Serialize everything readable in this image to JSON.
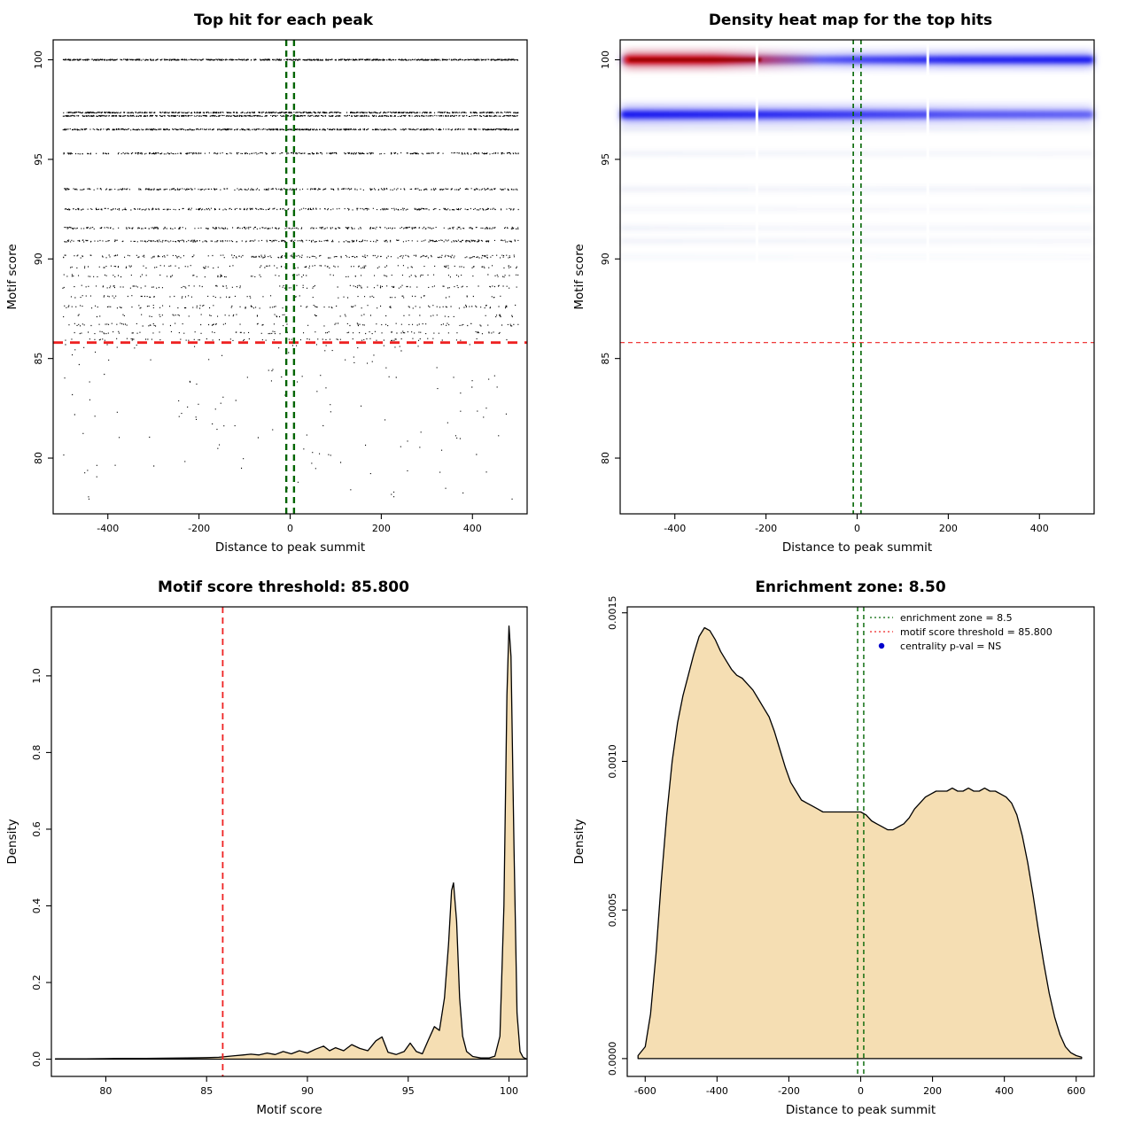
{
  "chart_data": [
    {
      "type": "scatter",
      "title": "Top hit for each peak",
      "xlabel": "Distance to peak summit",
      "ylabel": "Motif score",
      "xlim": [
        -520,
        520
      ],
      "ylim": [
        77.2,
        101
      ],
      "xticks": [
        -400,
        -200,
        0,
        200,
        400
      ],
      "xtick_labels": [
        "-400",
        "-200",
        "0",
        "200",
        "400"
      ],
      "yticks": [
        80,
        85,
        90,
        95,
        100
      ],
      "ytick_labels": [
        "80",
        "85",
        "90",
        "95",
        "100"
      ],
      "margins": {
        "l": 60,
        "t": 45,
        "r": 45,
        "b": 60
      },
      "point_x_range": [
        -500,
        500
      ],
      "bands": [
        {
          "score": 100,
          "n": 850,
          "jitter": 0.05
        },
        {
          "score": 97.35,
          "n": 650,
          "jitter": 0.05
        },
        {
          "score": 97.18,
          "n": 600,
          "jitter": 0.05
        },
        {
          "score": 96.5,
          "n": 620,
          "jitter": 0.06
        },
        {
          "score": 95.3,
          "n": 360,
          "jitter": 0.07
        },
        {
          "score": 93.5,
          "n": 330,
          "jitter": 0.08
        },
        {
          "score": 92.5,
          "n": 300,
          "jitter": 0.08
        },
        {
          "score": 91.55,
          "n": 280,
          "jitter": 0.09
        },
        {
          "score": 90.9,
          "n": 300,
          "jitter": 0.09
        },
        {
          "score": 90.12,
          "n": 210,
          "jitter": 0.14
        },
        {
          "score": 89.6,
          "n": 120,
          "jitter": 0.14
        },
        {
          "score": 89.15,
          "n": 90,
          "jitter": 0.12
        },
        {
          "score": 88.6,
          "n": 115,
          "jitter": 0.14
        },
        {
          "score": 88.1,
          "n": 75,
          "jitter": 0.12
        },
        {
          "score": 87.6,
          "n": 120,
          "jitter": 0.16
        },
        {
          "score": 87.15,
          "n": 65,
          "jitter": 0.12
        },
        {
          "score": 86.7,
          "n": 95,
          "jitter": 0.14
        },
        {
          "score": 86.3,
          "n": 85,
          "jitter": 0.12
        },
        {
          "score": 85.95,
          "n": 70,
          "jitter": 0.1
        }
      ],
      "sparse": {
        "n": 150,
        "y_top": 85.7,
        "y_spread": 7.8,
        "power": 1.7
      },
      "threshold": {
        "y": 85.8,
        "color": "#ee2222",
        "width": 2.8,
        "dash": "11 8"
      },
      "zone": {
        "x": 8.5,
        "color": "#006400",
        "width": 2.4,
        "dash": "7 5"
      }
    },
    {
      "type": "heatmap",
      "title": "Density heat map for the top hits",
      "xlabel": "Distance to peak summit",
      "ylabel": "Motif score",
      "xlim": [
        -520,
        520
      ],
      "ylim": [
        77.2,
        101
      ],
      "xticks": [
        -400,
        -200,
        0,
        200,
        400
      ],
      "xtick_labels": [
        "-400",
        "-200",
        "0",
        "200",
        "400"
      ],
      "yticks": [
        80,
        85,
        90,
        95,
        100
      ],
      "ytick_labels": [
        "80",
        "85",
        "90",
        "95",
        "100"
      ],
      "margins": {
        "l": 60,
        "t": 45,
        "r": 45,
        "b": 60
      },
      "bands": [
        {
          "y": 100,
          "h": 7,
          "color": "#0000ee",
          "halo": true,
          "stops": [
            [
              0,
              0.3
            ],
            [
              0.28,
              0.42
            ],
            [
              0.5,
              0.72
            ],
            [
              0.72,
              0.9
            ],
            [
              1,
              0.95
            ]
          ]
        },
        {
          "y": 97.25,
          "h": 8,
          "color": "#0000ee",
          "halo": true,
          "stops": [
            [
              0,
              0.93
            ],
            [
              0.4,
              0.78
            ],
            [
              0.75,
              0.6
            ],
            [
              1,
              0.55
            ]
          ]
        },
        {
          "y": 96.5,
          "h": 5,
          "color": "#5566bb",
          "stops": [
            [
              0,
              0.13
            ],
            [
              1,
              0.08
            ]
          ]
        },
        {
          "y": 95.3,
          "h": 5,
          "color": "#5566bb",
          "stops": [
            [
              0,
              0.1
            ],
            [
              1,
              0.07
            ]
          ]
        },
        {
          "y": 93.5,
          "h": 5,
          "color": "#5566bb",
          "stops": [
            [
              0,
              0.12
            ],
            [
              0.5,
              0.09
            ],
            [
              1,
              0.11
            ]
          ]
        },
        {
          "y": 92.5,
          "h": 4,
          "color": "#5566bb",
          "stops": [
            [
              0,
              0.08
            ],
            [
              1,
              0.06
            ]
          ]
        },
        {
          "y": 91.55,
          "h": 5,
          "color": "#5566bb",
          "stops": [
            [
              0,
              0.11
            ],
            [
              0.4,
              0.07
            ],
            [
              1,
              0.08
            ]
          ]
        },
        {
          "y": 90.9,
          "h": 5,
          "color": "#5566bb",
          "stops": [
            [
              0,
              0.1
            ],
            [
              1,
              0.07
            ]
          ]
        },
        {
          "y": 90.1,
          "h": 4,
          "color": "#5566bb",
          "stops": [
            [
              0,
              0.06
            ],
            [
              1,
              0.04
            ]
          ]
        }
      ],
      "red_overlay": {
        "y": 100,
        "x0": -510,
        "x1": -80,
        "h": 8,
        "color": "#dd0000",
        "stops": [
          [
            0,
            0.95
          ],
          [
            0.45,
            0.9
          ],
          [
            0.8,
            0.3
          ],
          [
            1,
            0
          ]
        ]
      },
      "red_core": {
        "y": 100,
        "x0": -500,
        "x1": -210,
        "h": 4,
        "color": "#8b0000",
        "opacity": 0.8
      },
      "gaps": [
        -220,
        155
      ],
      "gap_bottom": 89.6,
      "threshold": {
        "y": 85.8,
        "color": "#ee2222",
        "width": 1.2,
        "dash": "5 4"
      },
      "zone": {
        "x": 8.5,
        "color": "#006400",
        "width": 1.6,
        "dash": "5 4"
      }
    },
    {
      "type": "area",
      "title": "Motif score threshold: 85.800",
      "xlabel": "Motif score",
      "ylabel": "Density",
      "xlim": [
        77.3,
        100.9
      ],
      "ylim": [
        -0.045,
        1.18
      ],
      "xticks": [
        80,
        85,
        90,
        95,
        100
      ],
      "xtick_labels": [
        "80",
        "85",
        "90",
        "95",
        "100"
      ],
      "yticks": [
        0,
        0.2,
        0.4,
        0.6,
        0.8,
        1.0
      ],
      "ytick_labels": [
        "0.0",
        "0.2",
        "0.4",
        "0.6",
        "0.8",
        "1.0"
      ],
      "margins": {
        "l": 58,
        "t": 45,
        "r": 45,
        "b": 65
      },
      "fill": "#f5deb3",
      "points": [
        [
          77.5,
          0.001
        ],
        [
          79,
          0.001
        ],
        [
          80,
          0.0015
        ],
        [
          81,
          0.002
        ],
        [
          82,
          0.002
        ],
        [
          83,
          0.0025
        ],
        [
          84,
          0.003
        ],
        [
          85,
          0.004
        ],
        [
          85.6,
          0.005
        ],
        [
          86,
          0.007
        ],
        [
          86.4,
          0.009
        ],
        [
          86.8,
          0.011
        ],
        [
          87.2,
          0.013
        ],
        [
          87.6,
          0.011
        ],
        [
          88,
          0.016
        ],
        [
          88.4,
          0.012
        ],
        [
          88.8,
          0.02
        ],
        [
          89.2,
          0.014
        ],
        [
          89.6,
          0.022
        ],
        [
          90,
          0.016
        ],
        [
          90.4,
          0.026
        ],
        [
          90.8,
          0.034
        ],
        [
          91.1,
          0.022
        ],
        [
          91.4,
          0.03
        ],
        [
          91.8,
          0.022
        ],
        [
          92.2,
          0.038
        ],
        [
          92.6,
          0.028
        ],
        [
          93,
          0.022
        ],
        [
          93.4,
          0.048
        ],
        [
          93.7,
          0.058
        ],
        [
          94,
          0.018
        ],
        [
          94.4,
          0.012
        ],
        [
          94.8,
          0.02
        ],
        [
          95.1,
          0.042
        ],
        [
          95.4,
          0.02
        ],
        [
          95.7,
          0.014
        ],
        [
          96,
          0.05
        ],
        [
          96.3,
          0.085
        ],
        [
          96.55,
          0.075
        ],
        [
          96.8,
          0.16
        ],
        [
          97,
          0.3
        ],
        [
          97.15,
          0.44
        ],
        [
          97.25,
          0.46
        ],
        [
          97.4,
          0.36
        ],
        [
          97.55,
          0.16
        ],
        [
          97.7,
          0.06
        ],
        [
          97.9,
          0.02
        ],
        [
          98.2,
          0.007
        ],
        [
          98.6,
          0.003
        ],
        [
          99,
          0.003
        ],
        [
          99.3,
          0.008
        ],
        [
          99.55,
          0.06
        ],
        [
          99.75,
          0.4
        ],
        [
          99.9,
          0.95
        ],
        [
          100,
          1.13
        ],
        [
          100.1,
          1.05
        ],
        [
          100.25,
          0.55
        ],
        [
          100.4,
          0.12
        ],
        [
          100.55,
          0.02
        ],
        [
          100.7,
          0.005
        ],
        [
          100.85,
          0.001
        ]
      ],
      "vlines": [
        {
          "x": 85.8,
          "color": "#ee2222",
          "width": 1.8,
          "dash": "7 5"
        }
      ]
    },
    {
      "type": "area",
      "title": "Enrichment zone: 8.50",
      "xlabel": "Distance to peak summit",
      "ylabel": "Density",
      "xlim": [
        -650,
        650
      ],
      "ylim": [
        -6e-05,
        0.00152
      ],
      "xticks": [
        -600,
        -400,
        -200,
        0,
        200,
        400,
        600
      ],
      "xtick_labels": [
        "-600",
        "-400",
        "-200",
        "0",
        "200",
        "400",
        "600"
      ],
      "yticks": [
        0,
        0.0005,
        0.001,
        0.0015
      ],
      "ytick_labels": [
        "0.0000",
        "0.0005",
        "0.0010",
        "0.0015"
      ],
      "margins": {
        "l": 68,
        "t": 45,
        "r": 45,
        "b": 65
      },
      "fill": "#f5deb3",
      "points": [
        [
          -620,
          1e-05
        ],
        [
          -600,
          4e-05
        ],
        [
          -585,
          0.00015
        ],
        [
          -570,
          0.00035
        ],
        [
          -555,
          0.0006
        ],
        [
          -540,
          0.00082
        ],
        [
          -525,
          0.001
        ],
        [
          -510,
          0.00113
        ],
        [
          -495,
          0.00122
        ],
        [
          -480,
          0.00129
        ],
        [
          -465,
          0.00136
        ],
        [
          -450,
          0.00142
        ],
        [
          -435,
          0.00145
        ],
        [
          -420,
          0.00144
        ],
        [
          -405,
          0.00141
        ],
        [
          -390,
          0.00137
        ],
        [
          -375,
          0.00134
        ],
        [
          -360,
          0.00131
        ],
        [
          -345,
          0.00129
        ],
        [
          -330,
          0.00128
        ],
        [
          -315,
          0.00126
        ],
        [
          -300,
          0.00124
        ],
        [
          -285,
          0.00121
        ],
        [
          -270,
          0.00118
        ],
        [
          -255,
          0.00115
        ],
        [
          -240,
          0.0011
        ],
        [
          -225,
          0.00104
        ],
        [
          -210,
          0.00098
        ],
        [
          -195,
          0.00093
        ],
        [
          -180,
          0.0009
        ],
        [
          -165,
          0.00087
        ],
        [
          -150,
          0.00086
        ],
        [
          -135,
          0.00085
        ],
        [
          -120,
          0.00084
        ],
        [
          -105,
          0.00083
        ],
        [
          -90,
          0.00083
        ],
        [
          -75,
          0.00083
        ],
        [
          -60,
          0.00083
        ],
        [
          -45,
          0.00083
        ],
        [
          -30,
          0.00083
        ],
        [
          -15,
          0.00083
        ],
        [
          0,
          0.00083
        ],
        [
          15,
          0.00082
        ],
        [
          30,
          0.0008
        ],
        [
          45,
          0.00079
        ],
        [
          60,
          0.00078
        ],
        [
          75,
          0.00077
        ],
        [
          90,
          0.00077
        ],
        [
          105,
          0.00078
        ],
        [
          120,
          0.00079
        ],
        [
          135,
          0.00081
        ],
        [
          150,
          0.00084
        ],
        [
          165,
          0.00086
        ],
        [
          180,
          0.00088
        ],
        [
          195,
          0.00089
        ],
        [
          210,
          0.0009
        ],
        [
          225,
          0.0009
        ],
        [
          240,
          0.0009
        ],
        [
          255,
          0.00091
        ],
        [
          270,
          0.0009
        ],
        [
          285,
          0.0009
        ],
        [
          300,
          0.00091
        ],
        [
          315,
          0.0009
        ],
        [
          330,
          0.0009
        ],
        [
          345,
          0.00091
        ],
        [
          360,
          0.0009
        ],
        [
          375,
          0.0009
        ],
        [
          390,
          0.00089
        ],
        [
          405,
          0.00088
        ],
        [
          420,
          0.00086
        ],
        [
          435,
          0.00082
        ],
        [
          450,
          0.00075
        ],
        [
          465,
          0.00066
        ],
        [
          480,
          0.00055
        ],
        [
          495,
          0.00043
        ],
        [
          510,
          0.00032
        ],
        [
          525,
          0.00022
        ],
        [
          540,
          0.00014
        ],
        [
          555,
          8e-05
        ],
        [
          570,
          4e-05
        ],
        [
          585,
          2e-05
        ],
        [
          600,
          1e-05
        ],
        [
          615,
          5e-06
        ]
      ],
      "vlines": [
        {
          "x": -8.5,
          "color": "#006400",
          "width": 1.4,
          "dash": "5 4"
        },
        {
          "x": 8.5,
          "color": "#006400",
          "width": 1.4,
          "dash": "5 4"
        }
      ],
      "legend": {
        "x_frac": 0.52,
        "items": [
          {
            "marker": "line",
            "color": "#006400",
            "label": "enrichment zone = 8.5"
          },
          {
            "marker": "line",
            "color": "#ee2222",
            "label": "motif score threshold = 85.800"
          },
          {
            "marker": "point",
            "color": "#0000cc",
            "label": "centrality p-val = NS"
          }
        ]
      }
    }
  ],
  "colors": {
    "background": "#ffffff",
    "points": "#000000",
    "density_fill": "#f5deb3",
    "threshold_red": "#ee2222",
    "zone_green": "#006400",
    "heat_blue": "#0000ee",
    "heat_red": "#dd0000",
    "legend_blue": "#0000cc"
  }
}
